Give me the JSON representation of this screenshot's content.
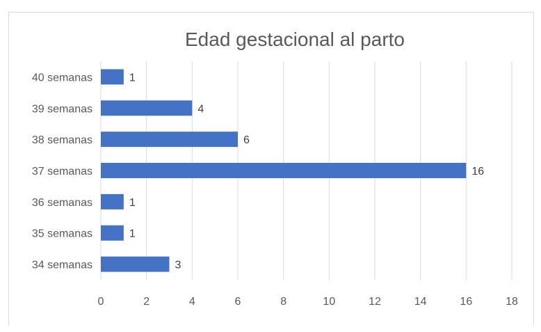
{
  "chart_data": {
    "type": "bar",
    "orientation": "horizontal",
    "title": "Edad gestacional al parto",
    "categories": [
      "40 semanas",
      "39 semanas",
      "38 semanas",
      "37 semanas",
      "36 semanas",
      "35 semanas",
      "34 semanas"
    ],
    "values": [
      1,
      4,
      6,
      16,
      1,
      1,
      3
    ],
    "xlim": [
      0,
      18
    ],
    "xticks": [
      0,
      2,
      4,
      6,
      8,
      10,
      12,
      14,
      16,
      18
    ],
    "grid": true,
    "data_labels": true,
    "legend": "none",
    "colors": {
      "bar": "#4472c4",
      "grid": "#d9d9d9",
      "text": "#595959"
    }
  }
}
